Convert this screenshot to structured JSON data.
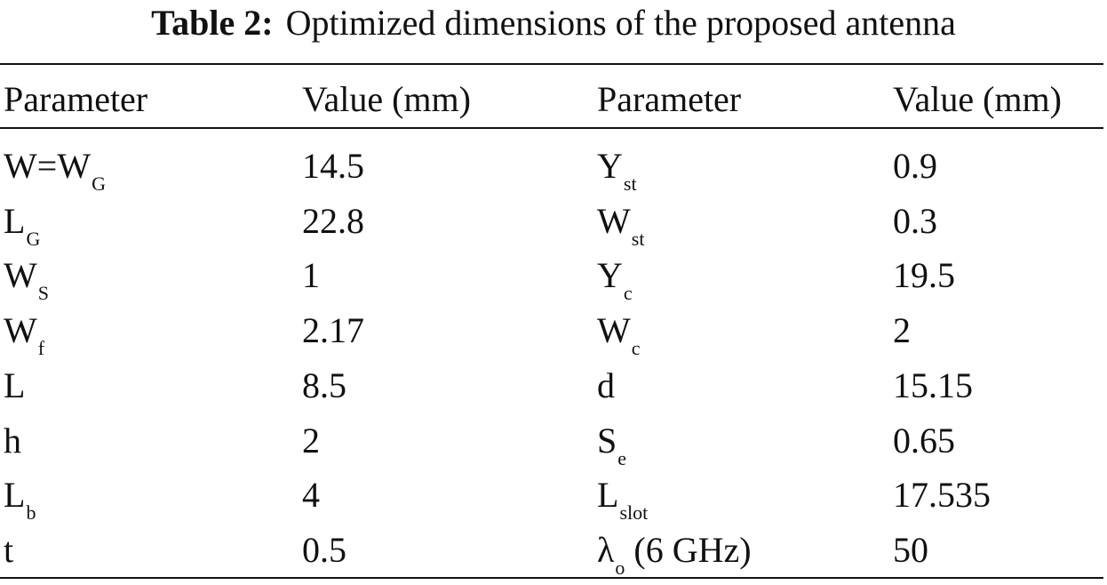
{
  "table": {
    "caption": {
      "label": "Table 2:",
      "text": "Optimized dimensions of the proposed antenna"
    },
    "header": [
      "Parameter",
      "Value (mm)",
      "Parameter",
      "Value (mm)"
    ],
    "rows": [
      [
        {
          "text": "W=W",
          "sub": "G"
        },
        "14.5",
        {
          "text": "Y",
          "sub": "st"
        },
        "0.9"
      ],
      [
        {
          "text": "L",
          "sub": "G"
        },
        "22.8",
        {
          "text": "W",
          "sub": "st"
        },
        "0.3"
      ],
      [
        {
          "text": "W",
          "sub": "S"
        },
        "1",
        {
          "text": "Y",
          "sub": "c"
        },
        "19.5"
      ],
      [
        {
          "text": "W",
          "sub": "f"
        },
        "2.17",
        {
          "text": "W",
          "sub": "c"
        },
        "2"
      ],
      [
        {
          "text": "L"
        },
        "8.5",
        {
          "text": "d"
        },
        "15.15"
      ],
      [
        {
          "text": "h"
        },
        "2",
        {
          "text": "S",
          "sub": "e"
        },
        "0.65"
      ],
      [
        {
          "text": "L",
          "sub": "b"
        },
        "4",
        {
          "text": "L",
          "sub": "slot"
        },
        "17.535"
      ],
      [
        {
          "text": "t"
        },
        "0.5",
        {
          "text": "λ",
          "sub": "o",
          "after": " (6 GHz)"
        },
        "50"
      ]
    ]
  }
}
